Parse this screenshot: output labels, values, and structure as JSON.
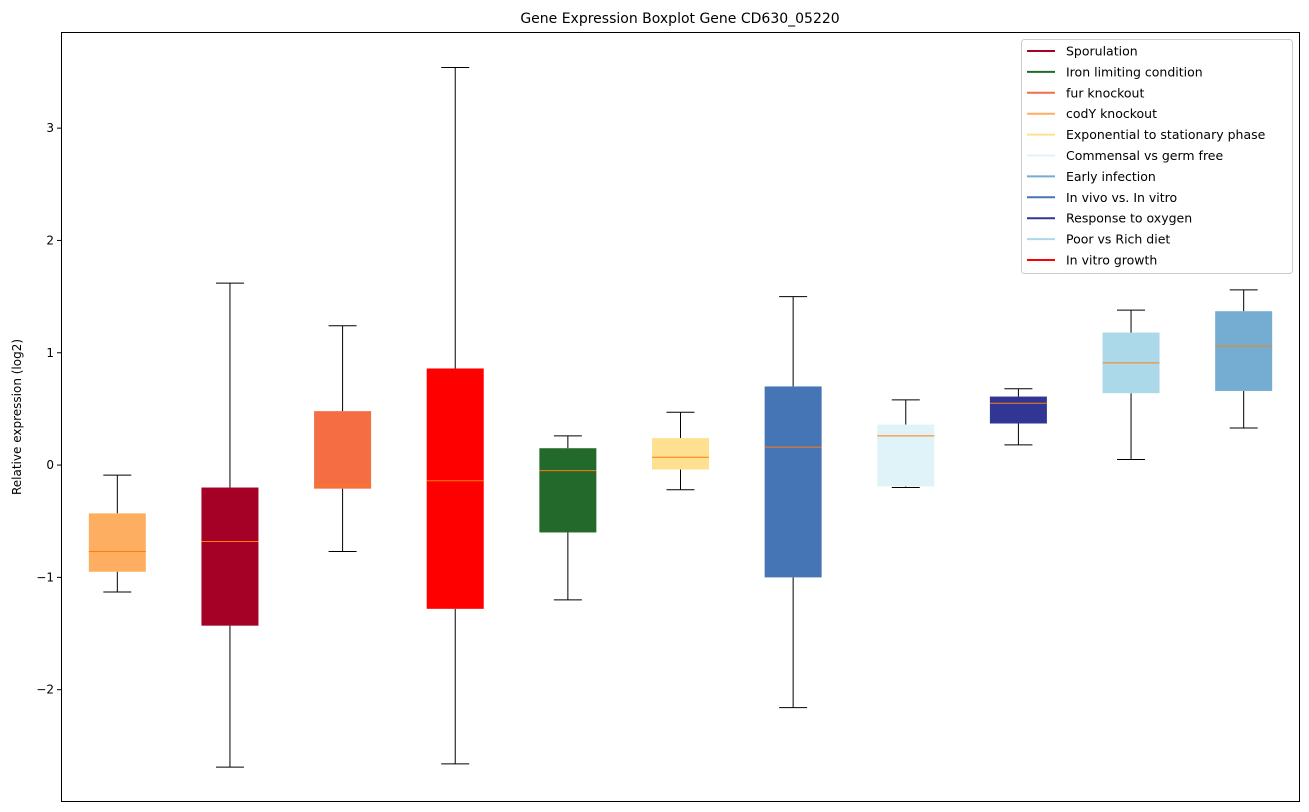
{
  "chart_data": {
    "type": "boxplot",
    "title": "Gene Expression Boxplot Gene CD630_05220",
    "xlabel": "",
    "ylabel": "Relative expression (log2)",
    "ylim": [
      -3.0,
      3.856
    ],
    "xlim": [
      0.5,
      11.5
    ],
    "yticks": [
      -2,
      -1,
      0,
      1,
      2,
      3
    ],
    "ytick_labels": [
      "−2",
      "−1",
      "0",
      "1",
      "2",
      "3"
    ],
    "grid": false,
    "legend_position": "top-right",
    "median_color": "#ff7f0e",
    "series": [
      {
        "name": "codY knockout",
        "color": "#fdae61",
        "whislo": -1.13,
        "q1": -0.95,
        "med": -0.77,
        "q3": -0.43,
        "whishi": -0.09
      },
      {
        "name": "Sporulation",
        "color": "#a50026",
        "whislo": -2.69,
        "q1": -1.43,
        "med": -0.68,
        "q3": -0.2,
        "whishi": 1.62
      },
      {
        "name": "fur knockout",
        "color": "#f46d43",
        "whislo": -0.77,
        "q1": -0.21,
        "med": -0.18,
        "q3": 0.48,
        "whishi": 1.24
      },
      {
        "name": "In vitro growth",
        "color": "#ff0000",
        "whislo": -2.66,
        "q1": -1.28,
        "med": -0.14,
        "q3": 0.86,
        "whishi": 3.54
      },
      {
        "name": "Iron limiting condition",
        "color": "#23692b",
        "whislo": -1.2,
        "q1": -0.6,
        "med": -0.05,
        "q3": 0.15,
        "whishi": 0.26
      },
      {
        "name": "Exponential to stationary phase",
        "color": "#fee090",
        "whislo": -0.22,
        "q1": -0.04,
        "med": 0.07,
        "q3": 0.24,
        "whishi": 0.47
      },
      {
        "name": "In vivo vs. In vitro",
        "color": "#4575b4",
        "whislo": -2.16,
        "q1": -1.0,
        "med": 0.16,
        "q3": 0.7,
        "whishi": 1.5
      },
      {
        "name": "Commensal vs germ free",
        "color": "#e0f3f8",
        "whislo": -0.2,
        "q1": -0.19,
        "med": 0.26,
        "q3": 0.36,
        "whishi": 0.58
      },
      {
        "name": "Response to oxygen",
        "color": "#313695",
        "whislo": 0.18,
        "q1": 0.37,
        "med": 0.55,
        "q3": 0.61,
        "whishi": 0.68
      },
      {
        "name": "Poor vs Rich diet",
        "color": "#abd9e9",
        "whislo": 0.05,
        "q1": 0.64,
        "med": 0.91,
        "q3": 1.18,
        "whishi": 1.38
      },
      {
        "name": "Early infection",
        "color": "#74add1",
        "whislo": 0.33,
        "q1": 0.66,
        "med": 1.06,
        "q3": 1.37,
        "whishi": 1.56
      }
    ],
    "legend": [
      {
        "label": "Sporulation",
        "color": "#a50026"
      },
      {
        "label": "Iron limiting condition",
        "color": "#23692b"
      },
      {
        "label": "fur knockout",
        "color": "#f46d43"
      },
      {
        "label": "codY knockout",
        "color": "#fdae61"
      },
      {
        "label": "Exponential to stationary phase",
        "color": "#fee090"
      },
      {
        "label": "Commensal vs germ free",
        "color": "#e0f3f8"
      },
      {
        "label": "Early infection",
        "color": "#74add1"
      },
      {
        "label": "In vivo vs. In vitro",
        "color": "#4575b4"
      },
      {
        "label": "Response to oxygen",
        "color": "#313695"
      },
      {
        "label": "Poor vs Rich diet",
        "color": "#abd9e9"
      },
      {
        "label": "In vitro growth",
        "color": "#ff0000"
      }
    ]
  }
}
